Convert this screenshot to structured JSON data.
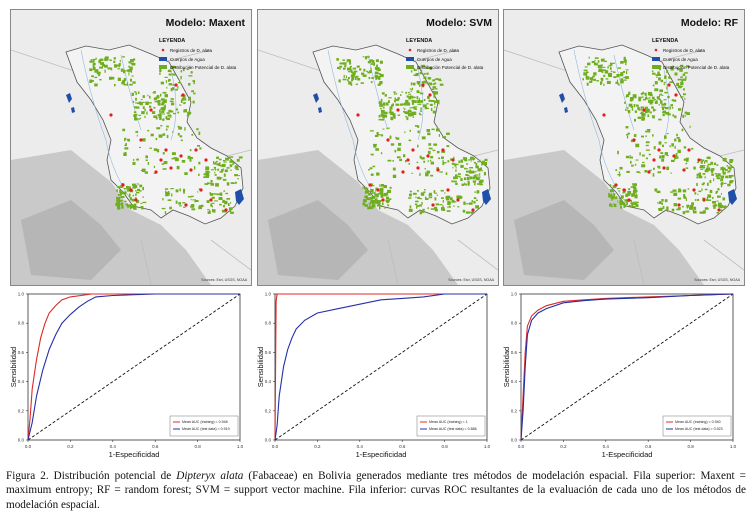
{
  "maps": [
    {
      "title": "Modelo: Maxent",
      "source": "Sources: Esri, USGS, NOAA"
    },
    {
      "title": "Modelo: SVM",
      "source": "Sources: Esri, USGS, NOAA"
    },
    {
      "title": "Modelo: RF",
      "source": "Sources: Esri, USGS, NOAA"
    }
  ],
  "legend": {
    "title": "LEYENDA",
    "items": [
      "Registros de D. alata",
      "Cuerpos de Agua",
      "Distribución Potencial de D. alata"
    ]
  },
  "colors": {
    "distribution": "#6fae1f",
    "water": "#1f4fa8",
    "records": "#e02020",
    "roc_train": "#e02828",
    "roc_test": "#2430a8"
  },
  "chart_data": [
    {
      "type": "line",
      "xlabel": "1-Especificidad",
      "ylabel": "Sensibilidad",
      "xlim": [
        0,
        1
      ],
      "ylim": [
        0,
        1
      ],
      "xticks": [
        "0.0",
        "0.2",
        "0.4",
        "0.6",
        "0.8",
        "1.0"
      ],
      "yticks": [
        "0.0",
        "0.2",
        "0.4",
        "0.6",
        "0.8",
        "1.0"
      ],
      "series": [
        {
          "name": "Mean AUC (training) = 0.948",
          "x": [
            0,
            0.01,
            0.02,
            0.04,
            0.06,
            0.08,
            0.1,
            0.13,
            0.16,
            0.2,
            0.25,
            0.3,
            0.4,
            0.6,
            0.8,
            1.0
          ],
          "y": [
            0,
            0.15,
            0.35,
            0.55,
            0.7,
            0.8,
            0.87,
            0.92,
            0.96,
            0.98,
            0.99,
            1,
            1,
            1,
            1,
            1
          ]
        },
        {
          "name": "Mean AUC (test data) = 0.919",
          "x": [
            0,
            0.02,
            0.04,
            0.07,
            0.1,
            0.13,
            0.16,
            0.2,
            0.24,
            0.28,
            0.32,
            0.4,
            0.6,
            0.8,
            1.0
          ],
          "y": [
            0,
            0.12,
            0.3,
            0.48,
            0.62,
            0.72,
            0.8,
            0.86,
            0.91,
            0.95,
            0.98,
            0.99,
            1,
            1,
            1
          ]
        }
      ]
    },
    {
      "type": "line",
      "xlabel": "1-Especificidad",
      "ylabel": "Sensibilidad",
      "xlim": [
        0,
        1
      ],
      "ylim": [
        0,
        1
      ],
      "xticks": [
        "0.0",
        "0.2",
        "0.4",
        "0.6",
        "0.8",
        "1.0"
      ],
      "yticks": [
        "0.0",
        "0.2",
        "0.4",
        "0.6",
        "0.8",
        "1.0"
      ],
      "series": [
        {
          "name": "Mean AUC (training) = 1",
          "x": [
            0,
            0.005,
            0.01,
            1.0
          ],
          "y": [
            0,
            0.95,
            1,
            1
          ]
        },
        {
          "name": "Mean AUC (test data) = 0.886",
          "x": [
            0,
            0.01,
            0.02,
            0.04,
            0.06,
            0.08,
            0.1,
            0.14,
            0.2,
            0.3,
            0.4,
            0.5,
            0.6,
            0.7,
            0.8,
            1.0
          ],
          "y": [
            0,
            0.1,
            0.3,
            0.5,
            0.62,
            0.7,
            0.76,
            0.82,
            0.87,
            0.9,
            0.93,
            0.96,
            0.97,
            0.98,
            1,
            1
          ]
        }
      ]
    },
    {
      "type": "line",
      "xlabel": "1-Especificidad",
      "ylabel": "Sensibilidad",
      "xlim": [
        0,
        1
      ],
      "ylim": [
        0,
        1
      ],
      "xticks": [
        "0.0",
        "0.2",
        "0.4",
        "0.6",
        "0.8",
        "1.0"
      ],
      "yticks": [
        "0.0",
        "0.2",
        "0.4",
        "0.6",
        "0.8",
        "1.0"
      ],
      "series": [
        {
          "name": "Mean AUC (training) = 0.940",
          "x": [
            0,
            0.01,
            0.02,
            0.03,
            0.05,
            0.08,
            0.12,
            0.2,
            0.3,
            0.4,
            0.6,
            0.8,
            1.0
          ],
          "y": [
            0,
            0.3,
            0.6,
            0.78,
            0.85,
            0.89,
            0.92,
            0.95,
            0.96,
            0.97,
            0.98,
            0.99,
            1
          ]
        },
        {
          "name": "Mean AUC (test data) = 0.923",
          "x": [
            0,
            0.01,
            0.02,
            0.03,
            0.05,
            0.08,
            0.12,
            0.2,
            0.3,
            0.4,
            0.6,
            0.8,
            1.0
          ],
          "y": [
            0,
            0.2,
            0.5,
            0.72,
            0.82,
            0.87,
            0.9,
            0.94,
            0.955,
            0.965,
            0.975,
            0.99,
            1
          ]
        }
      ]
    }
  ],
  "caption": {
    "prefix": "Figura 2. Distribución potencial de ",
    "species": "Dipteryx alata",
    "suffix": " (Fabaceae) en Bolivia generados mediante tres métodos de modelación espacial. Fila superior: Maxent = maximum entropy; RF = random forest; SVM = support vector machine. Fila inferior: curvas ROC resultantes de la evaluación de cada uno de los métodos de modelación espacial."
  }
}
